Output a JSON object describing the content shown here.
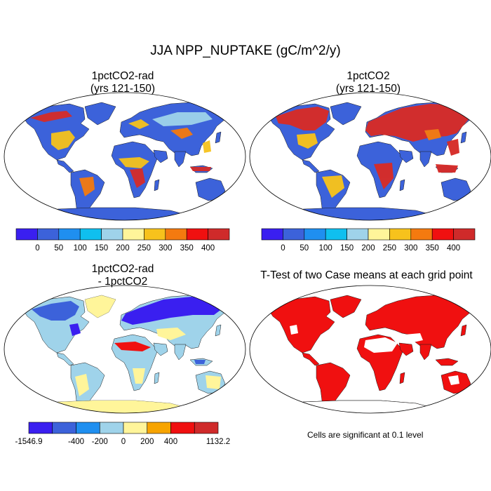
{
  "figure": {
    "title": "JJA NPP_NUPTAKE (gC/m^2/y)",
    "note": "Cells are significant at 0.1 level"
  },
  "panels": [
    {
      "title_line1": "1pctCO2-rad",
      "title_line2": "(yrs 121-150)"
    },
    {
      "title_line1": "1pctCO2",
      "title_line2": "(yrs 121-150)"
    },
    {
      "title_line1": "1pctCO2-rad",
      "title_line2": "- 1pctCO2"
    },
    {
      "title_line1": "T-Test of two Case means at each grid point",
      "title_line2": ""
    }
  ],
  "colorbar_abs": {
    "labels": [
      "0",
      "50",
      "100",
      "150",
      "200",
      "250",
      "300",
      "350",
      "400"
    ],
    "colors": [
      "#3a1ff0",
      "#3c62da",
      "#1f8ff0",
      "#0fbfef",
      "#9fd3ea",
      "#fff59a",
      "#f7c21c",
      "#f47a0f",
      "#f01010",
      "#cf2a2a"
    ]
  },
  "colorbar_diff": {
    "labels": [
      "-1546.9",
      "-400",
      "-200",
      "0",
      "200",
      "400",
      "1132.2"
    ],
    "colors": [
      "#3a1ff0",
      "#3c62da",
      "#1f8ff0",
      "#9fd3ea",
      "#fff59a",
      "#f7a400",
      "#f01010",
      "#cf2a2a"
    ]
  },
  "colors": {
    "low": "#3c62da",
    "high": "#d62c28",
    "mid": "#f6c21c",
    "diff_neg": "#9fd3ea",
    "diff_pos": "#fff59a",
    "signif": "#f01010"
  }
}
